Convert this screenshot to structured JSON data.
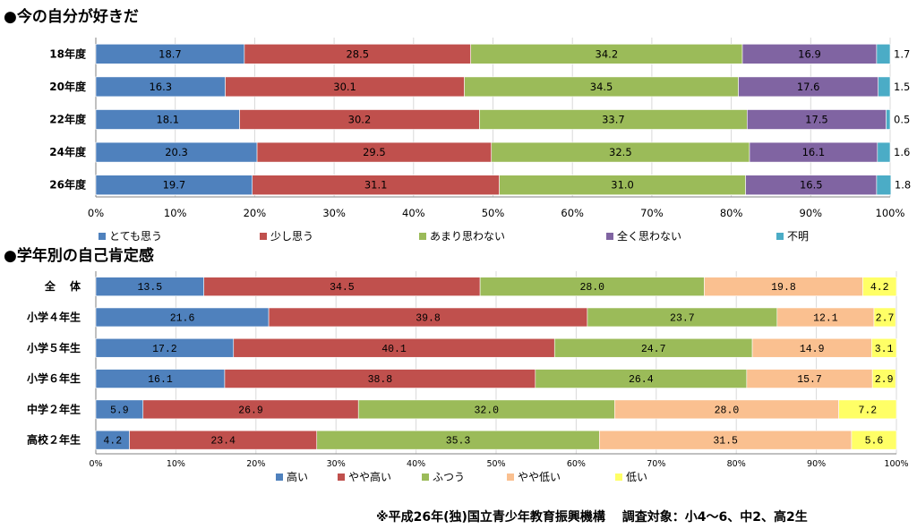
{
  "titles": {
    "chart1": "●今の自分が好きだ",
    "chart2": "●学年別の自己肯定感"
  },
  "footnote": "※平成26年(独)国立青少年教育振興機構　 調査対象：小4～6、中2、高2生",
  "chart_data": [
    {
      "type": "bar",
      "orientation": "horizontal",
      "stacked": true,
      "title": "●今の自分が好きだ",
      "categories": [
        "18年度",
        "20年度",
        "22年度",
        "24年度",
        "26年度"
      ],
      "series": [
        {
          "name": "とても思う",
          "color": "#4f81bd",
          "values": [
            18.7,
            16.3,
            18.1,
            20.3,
            19.7
          ]
        },
        {
          "name": "少し思う",
          "color": "#c0504d",
          "values": [
            28.5,
            30.1,
            30.2,
            29.5,
            31.1
          ]
        },
        {
          "name": "あまり思わない",
          "color": "#9bbb59",
          "values": [
            34.2,
            34.5,
            33.7,
            32.5,
            31.0
          ]
        },
        {
          "name": "全く思わない",
          "color": "#8064a2",
          "values": [
            16.9,
            17.6,
            17.5,
            16.1,
            16.5
          ]
        },
        {
          "name": "不明",
          "color": "#4bacc6",
          "values": [
            1.7,
            1.5,
            0.5,
            1.6,
            1.8
          ]
        }
      ],
      "data_labels": [
        [
          "18.7",
          "28.5",
          "34.2",
          "16.9",
          "1.7"
        ],
        [
          "16.3",
          "30.1",
          "34.5",
          "17.6",
          "1.5"
        ],
        [
          "18.1",
          "30.2",
          "33.7",
          "17.5",
          "0.5"
        ],
        [
          "20.3",
          "29.5",
          "32.5",
          "16.1",
          "1.6"
        ],
        [
          "19.7",
          "31.1",
          "31.0",
          "16.5",
          "1.8"
        ]
      ],
      "xlim": [
        0,
        100
      ],
      "x_ticks": [
        "0%",
        "10%",
        "20%",
        "30%",
        "40%",
        "50%",
        "60%",
        "70%",
        "80%",
        "90%",
        "100%"
      ],
      "grid": true,
      "legend_position": "bottom"
    },
    {
      "type": "bar",
      "orientation": "horizontal",
      "stacked": true,
      "title": "●学年別の自己肯定感",
      "categories": [
        "全　 体",
        "小学４年生",
        "小学５年生",
        "小学６年生",
        "中学２年生",
        "高校２年生"
      ],
      "series": [
        {
          "name": "高い",
          "color": "#4f81bd",
          "values": [
            13.5,
            21.6,
            17.2,
            16.1,
            5.9,
            4.2
          ]
        },
        {
          "name": "やや高い",
          "color": "#c0504d",
          "values": [
            34.5,
            39.8,
            40.1,
            38.8,
            26.9,
            23.4
          ]
        },
        {
          "name": "ふつう",
          "color": "#9bbb59",
          "values": [
            28.0,
            23.7,
            24.7,
            26.4,
            32.0,
            35.3
          ]
        },
        {
          "name": "やや低い",
          "color": "#fac090",
          "values": [
            19.8,
            12.1,
            14.9,
            15.7,
            28.0,
            31.5
          ]
        },
        {
          "name": "低い",
          "color": "#ffff66",
          "values": [
            4.2,
            2.7,
            3.1,
            2.9,
            7.2,
            5.6
          ]
        }
      ],
      "data_labels": [
        [
          "13.5",
          "34.5",
          "28.0",
          "19.8",
          "4.2"
        ],
        [
          "21.6",
          "39.8",
          "23.7",
          "12.1",
          "2.7"
        ],
        [
          "17.2",
          "40.1",
          "24.7",
          "14.9",
          "3.1"
        ],
        [
          "16.1",
          "38.8",
          "26.4",
          "15.7",
          "2.9"
        ],
        [
          "5.9",
          "26.9",
          "32.0",
          "28.0",
          "7.2"
        ],
        [
          "4.2",
          "23.4",
          "35.3",
          "31.5",
          "5.6"
        ]
      ],
      "xlim": [
        0,
        100
      ],
      "x_ticks": [
        "0%",
        "10%",
        "20%",
        "30%",
        "40%",
        "50%",
        "60%",
        "70%",
        "80%",
        "90%",
        "100%"
      ],
      "grid": true,
      "legend_position": "bottom"
    }
  ]
}
